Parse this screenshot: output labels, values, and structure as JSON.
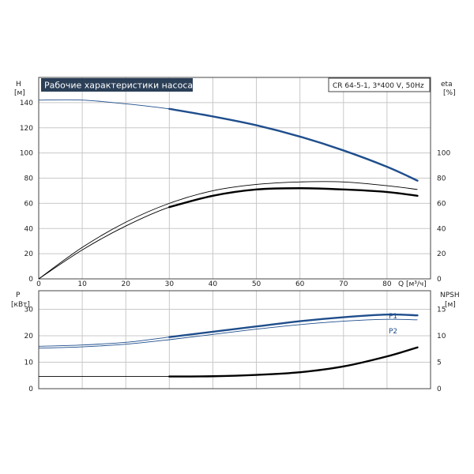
{
  "title": "Рабочие характеристики насоса",
  "model_info": "CR 64-5-1, 3*400 V, 50Hz",
  "colors": {
    "blue": "#1f4e8c",
    "black": "#000000",
    "grid": "#c8c8c8",
    "title_bg": "#2b3f57"
  },
  "chart_data": [
    {
      "type": "line",
      "panel": "top",
      "x_label": "Q [м³/ч]",
      "y_left_label": [
        "H",
        "[м]"
      ],
      "y_right_label": [
        "eta",
        "[%]"
      ],
      "xlim": [
        0,
        90
      ],
      "ylim_left": [
        0,
        160
      ],
      "ylim_right": [
        0,
        160
      ],
      "x_ticks": [
        0,
        10,
        20,
        30,
        40,
        50,
        60,
        70,
        80
      ],
      "y_left_ticks": [
        0,
        20,
        40,
        60,
        80,
        100,
        120,
        140
      ],
      "y_right_ticks": [
        0,
        20,
        40,
        60,
        80,
        100
      ],
      "grid": true,
      "series": [
        {
          "color": "blue",
          "style": "thin-then-bold",
          "bold_from": 30,
          "x": [
            0,
            10,
            20,
            30,
            40,
            50,
            60,
            70,
            80,
            87
          ],
          "y": [
            142,
            142,
            139,
            135,
            129,
            122,
            113,
            102,
            89,
            78
          ]
        },
        {
          "color": "black",
          "style": "thin",
          "x": [
            0,
            10,
            20,
            30,
            40,
            50,
            60,
            70,
            80,
            87
          ],
          "y": [
            0,
            25,
            45,
            60,
            70,
            75,
            77,
            77,
            74,
            71
          ]
        },
        {
          "color": "black",
          "style": "thin-then-bold",
          "bold_from": 30,
          "x": [
            0,
            10,
            20,
            30,
            40,
            50,
            60,
            70,
            80,
            87
          ],
          "y": [
            0,
            23,
            42,
            57,
            66,
            71,
            72,
            71,
            69,
            66
          ]
        }
      ]
    },
    {
      "type": "line",
      "panel": "bottom",
      "y_left_label": [
        "P",
        "[кВт]"
      ],
      "y_right_label": [
        "NPSH",
        "[м]"
      ],
      "xlim": [
        0,
        90
      ],
      "ylim_left": [
        0,
        37
      ],
      "ylim_right": [
        0,
        18.5
      ],
      "y_left_ticks": [
        0,
        10,
        20,
        30
      ],
      "y_right_ticks": [
        0,
        5,
        10,
        15
      ],
      "grid": true,
      "series": [
        {
          "name": "P1",
          "color": "blue",
          "style": "thin-then-bold",
          "bold_from": 30,
          "x": [
            0,
            10,
            20,
            30,
            40,
            50,
            60,
            70,
            80,
            87
          ],
          "y": [
            16,
            16.5,
            17.5,
            19.5,
            21.5,
            23.5,
            25.5,
            27,
            28,
            27.7
          ]
        },
        {
          "name": "P2",
          "color": "blue",
          "style": "thin",
          "x": [
            0,
            10,
            20,
            30,
            40,
            50,
            60,
            70,
            80,
            87
          ],
          "y": [
            15.3,
            15.8,
            16.8,
            18.5,
            20.5,
            22.5,
            24.2,
            25.5,
            26.2,
            26
          ]
        },
        {
          "color": "black",
          "style": "thin-then-bold",
          "bold_from": 30,
          "axis": "right",
          "x": [
            0,
            30,
            40,
            50,
            60,
            70,
            80,
            87
          ],
          "y": [
            2.3,
            2.3,
            2.35,
            2.6,
            3.1,
            4.2,
            6.1,
            7.8
          ]
        }
      ]
    }
  ]
}
